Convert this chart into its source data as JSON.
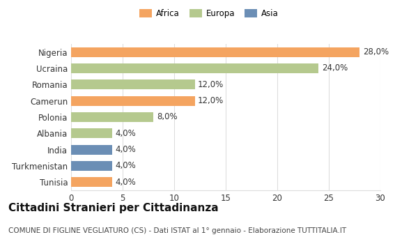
{
  "categories": [
    "Nigeria",
    "Ucraina",
    "Romania",
    "Camerun",
    "Polonia",
    "Albania",
    "India",
    "Turkmenistan",
    "Tunisia"
  ],
  "values": [
    28.0,
    24.0,
    12.0,
    12.0,
    8.0,
    4.0,
    4.0,
    4.0,
    4.0
  ],
  "colors": [
    "#F4A460",
    "#B5C98E",
    "#B5C98E",
    "#F4A460",
    "#B5C98E",
    "#B5C98E",
    "#6B8EB5",
    "#6B8EB5",
    "#F4A460"
  ],
  "legend_labels": [
    "Africa",
    "Europa",
    "Asia"
  ],
  "legend_colors": [
    "#F4A460",
    "#B5C98E",
    "#6B8EB5"
  ],
  "title": "Cittadini Stranieri per Cittadinanza",
  "subtitle": "COMUNE DI FIGLINE VEGLIATURO (CS) - Dati ISTAT al 1° gennaio - Elaborazione TUTTITALIA.IT",
  "xlim": [
    0,
    30
  ],
  "xticks": [
    0,
    5,
    10,
    15,
    20,
    25,
    30
  ],
  "background_color": "#ffffff",
  "grid_color": "#dddddd",
  "bar_height": 0.6,
  "title_fontsize": 11,
  "subtitle_fontsize": 7.5,
  "label_fontsize": 8.5,
  "tick_fontsize": 8.5,
  "value_fontsize": 8.5
}
